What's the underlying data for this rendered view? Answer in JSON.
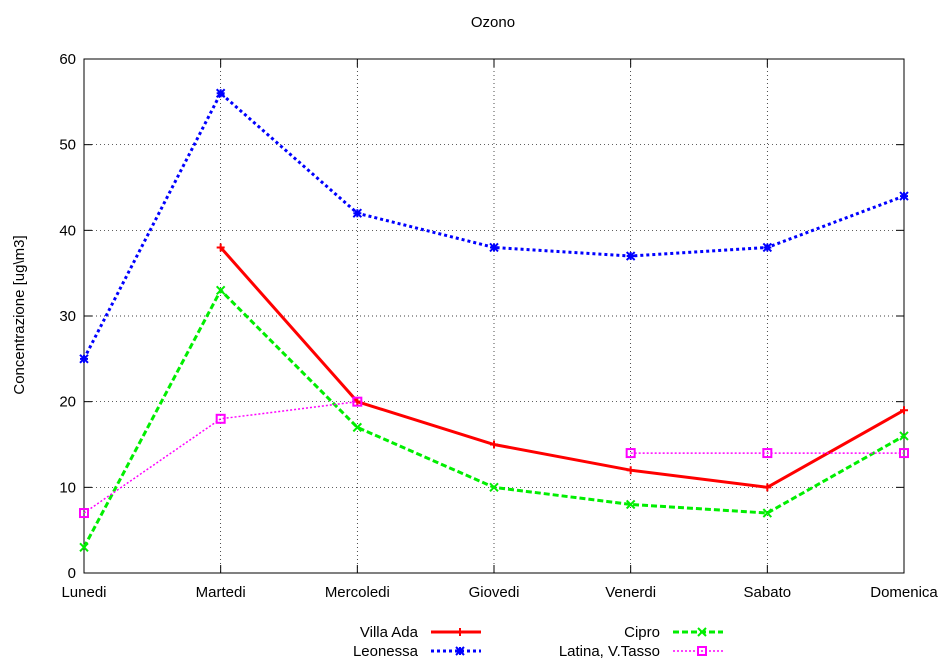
{
  "chart_data": {
    "type": "line",
    "title": "Ozono",
    "xlabel": "",
    "ylabel": "Concentrazione [ug\\m3]",
    "categories": [
      "Lunedi",
      "Martedi",
      "Mercoledi",
      "Giovedi",
      "Venerdi",
      "Sabato",
      "Domenica"
    ],
    "ylim": [
      0,
      60
    ],
    "yticks": [
      0,
      10,
      20,
      30,
      40,
      50,
      60
    ],
    "grid": true,
    "legend_position": "bottom",
    "series": [
      {
        "name": "Villa Ada",
        "color": "#ff0000",
        "dash": "solid",
        "marker": "plus",
        "values": [
          null,
          38,
          20,
          15,
          12,
          10,
          19
        ]
      },
      {
        "name": "Cipro",
        "color": "#00ee00",
        "dash": "dashed",
        "marker": "cross",
        "values": [
          3,
          33,
          17,
          10,
          8,
          7,
          16
        ]
      },
      {
        "name": "Leonessa",
        "color": "#0000ff",
        "dash": "dotted",
        "marker": "star",
        "values": [
          25,
          56,
          42,
          38,
          37,
          38,
          44
        ]
      },
      {
        "name": "Latina, V.Tasso",
        "color": "#ff00ff",
        "dash": "dotted-fine",
        "marker": "square",
        "values": [
          7,
          18,
          20,
          null,
          14,
          14,
          14
        ]
      }
    ]
  }
}
